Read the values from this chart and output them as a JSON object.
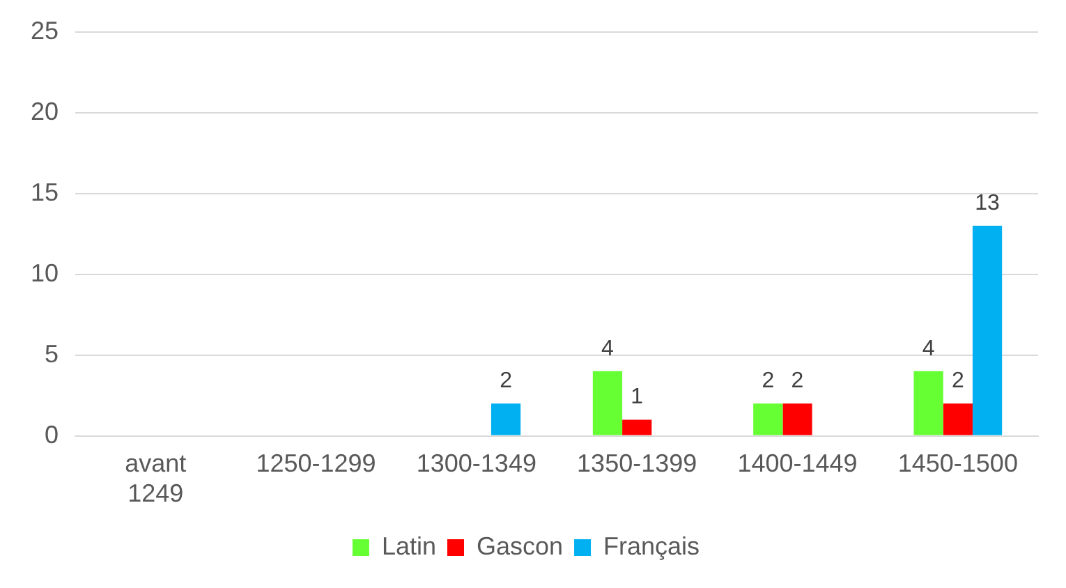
{
  "chart_data": {
    "type": "bar",
    "categories": [
      "avant 1249",
      "1250-1299",
      "1300-1349",
      "1350-1399",
      "1400-1449",
      "1450-1500"
    ],
    "series": [
      {
        "name": "Latin",
        "color": "#66ff33",
        "values": [
          0,
          0,
          0,
          4,
          2,
          4
        ],
        "value_labels": [
          null,
          null,
          null,
          "4",
          "2",
          "4"
        ]
      },
      {
        "name": "Gascon",
        "color": "#ff0000",
        "values": [
          0,
          0,
          0,
          1,
          2,
          2
        ],
        "value_labels": [
          null,
          null,
          null,
          "1",
          "2",
          "2"
        ]
      },
      {
        "name": "Français",
        "color": "#00b0f0",
        "values": [
          0,
          0,
          2,
          0,
          0,
          13
        ],
        "value_labels": [
          null,
          null,
          "2",
          null,
          null,
          "13"
        ]
      }
    ],
    "ylim": [
      0,
      25
    ],
    "yticks": [
      0,
      5,
      10,
      15,
      20,
      25
    ],
    "grid": "y",
    "legend": "bottom"
  }
}
